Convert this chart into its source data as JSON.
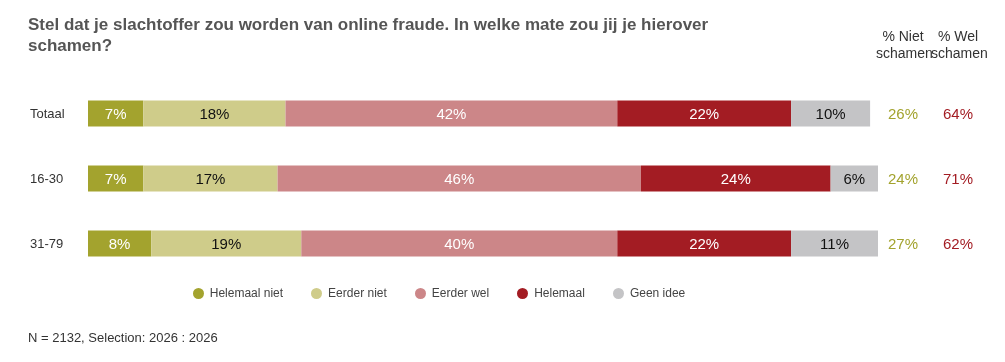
{
  "chart_data": {
    "type": "bar",
    "orientation": "horizontal",
    "stacked": true,
    "title": "Stel dat je slachtoffer zou worden van online fraude. In welke mate zou jij je hierover schamen?",
    "categories": [
      "Totaal",
      "16-30",
      "31-79"
    ],
    "series": [
      {
        "name": "Helemaal niet",
        "color": "#a3a32e",
        "values": [
          7,
          7,
          8
        ],
        "value_labels": [
          "7%",
          "7%",
          "8%"
        ]
      },
      {
        "name": "Eerder niet",
        "color": "#cfcc8a",
        "values": [
          18,
          17,
          19
        ],
        "value_labels": [
          "18%",
          "17%",
          "19%"
        ]
      },
      {
        "name": "Eerder wel",
        "color": "#cc8688",
        "values": [
          42,
          46,
          40
        ],
        "value_labels": [
          "42%",
          "46%",
          "40%"
        ]
      },
      {
        "name": "Helemaal",
        "color": "#a31c23",
        "values": [
          22,
          24,
          22
        ],
        "value_labels": [
          "22%",
          "24%",
          "22%"
        ]
      },
      {
        "name": "Geen idee",
        "color": "#c4c4c6",
        "values": [
          10,
          6,
          11
        ],
        "value_labels": [
          "10%",
          "6%",
          "11%"
        ]
      }
    ],
    "xlim": [
      0,
      100
    ],
    "tick_labels": "y",
    "grid": false,
    "legend": "bottom",
    "annotations": [
      "% Niet schamen",
      "% Wel schamen",
      "26%",
      "64%",
      "24%",
      "71%",
      "27%",
      "62%",
      "N = 2132, Selection: 2026 : 2026"
    ]
  }
}
